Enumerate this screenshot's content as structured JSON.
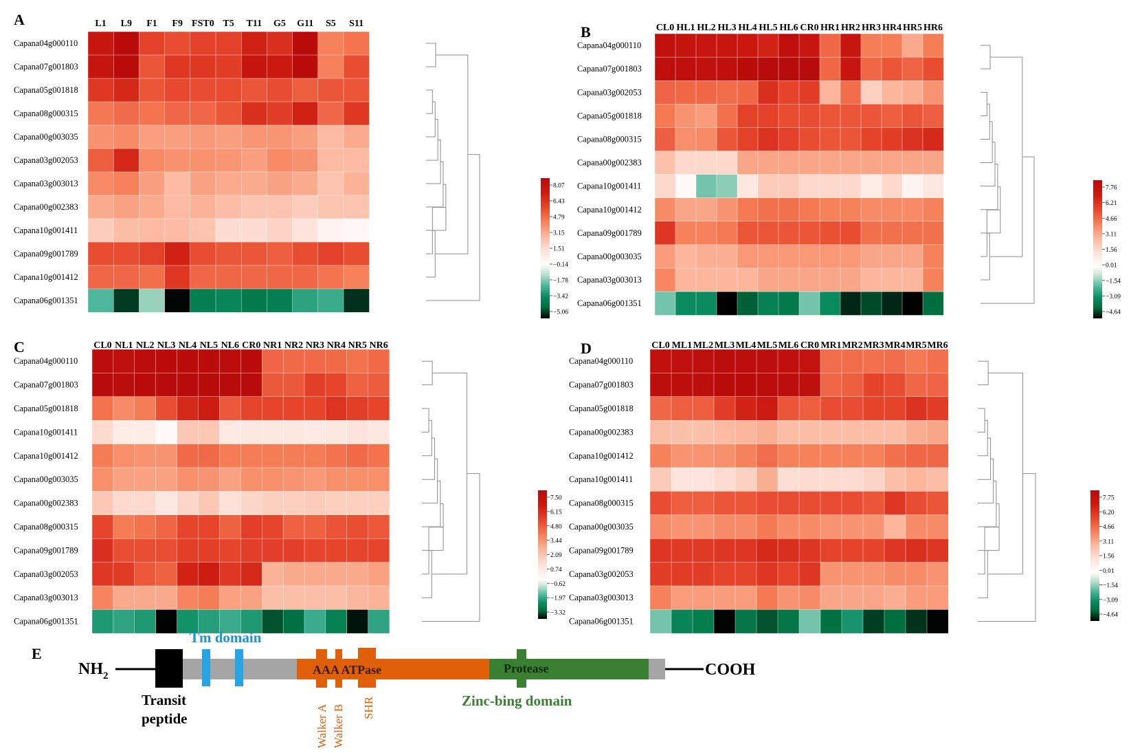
{
  "colors": {
    "pos": [
      "#fffdfd",
      "#fde2da",
      "#fbb79d",
      "#f67f58",
      "#e6452c",
      "#cc1a10",
      "#b80b0b"
    ],
    "neg": [
      "#ffffff",
      "#b7ddc9",
      "#4ab59a",
      "#0a8c60",
      "#006a3b",
      "#000000"
    ],
    "dendro": "#8c8c8c",
    "transit": "#000000",
    "tm": "#29a3e3",
    "gray": "#a5a5a5",
    "aaa": "#e0600a",
    "protease": "#3a8032",
    "zinc": "#3a8032",
    "tm_text": "#1f8fd8",
    "aaa_text": "#e0600a"
  },
  "chart_data": [
    {
      "type": "heatmap",
      "panel": "A",
      "columns": [
        "L1",
        "L9",
        "F1",
        "F9",
        "FST0",
        "T5",
        "T11",
        "G5",
        "G11",
        "S5",
        "S11"
      ],
      "rows": [
        "Capana04g000110",
        "Capana07g001803",
        "Capana05g001818",
        "Capana08g000315",
        "Capana00g003035",
        "Capana03g002053",
        "Capana03g003013",
        "Capana00g002383",
        "Capana10g001411",
        "Capana09g001789",
        "Capana10g001412",
        "Capana06g001351"
      ],
      "values": [
        [
          7.0,
          8.0,
          5.5,
          5.2,
          5.5,
          5.5,
          6.5,
          6.0,
          8.0,
          4.0,
          4.3
        ],
        [
          7.2,
          8.0,
          5.0,
          5.8,
          5.8,
          5.6,
          7.2,
          6.8,
          8.0,
          4.0,
          5.2
        ],
        [
          5.8,
          6.3,
          5.0,
          5.3,
          5.2,
          5.2,
          5.0,
          5.2,
          4.8,
          5.0,
          5.0
        ],
        [
          4.2,
          4.5,
          4.3,
          4.6,
          4.6,
          5.0,
          6.0,
          5.6,
          6.5,
          4.6,
          5.8
        ],
        [
          3.6,
          3.8,
          3.3,
          3.3,
          3.4,
          3.3,
          3.5,
          3.5,
          3.3,
          2.6,
          3.0
        ],
        [
          4.8,
          6.3,
          3.8,
          3.6,
          3.6,
          3.5,
          3.3,
          3.8,
          3.6,
          2.6,
          2.6
        ],
        [
          3.8,
          4.0,
          3.3,
          2.6,
          3.2,
          3.0,
          3.0,
          3.2,
          3.0,
          2.3,
          2.8
        ],
        [
          3.0,
          3.2,
          3.0,
          2.6,
          2.8,
          2.5,
          2.3,
          2.3,
          2.0,
          2.3,
          2.3
        ],
        [
          2.0,
          2.5,
          2.6,
          2.6,
          2.3,
          1.5,
          1.5,
          1.8,
          1.3,
          0.5,
          0.3
        ],
        [
          5.2,
          5.2,
          5.5,
          6.5,
          5.2,
          5.0,
          5.0,
          4.8,
          5.2,
          5.5,
          5.2
        ],
        [
          4.6,
          4.6,
          4.4,
          5.8,
          4.6,
          4.6,
          4.6,
          4.6,
          4.6,
          4.3,
          4.0
        ],
        [
          -2.0,
          -4.5,
          -1.3,
          -5.0,
          -3.4,
          -3.2,
          -3.6,
          -3.4,
          -2.5,
          -2.3,
          -4.6
        ]
      ],
      "colorbar_ticks": [
        "8.07",
        "6.43",
        "4.79",
        "3.15",
        "1.51",
        "−0.14",
        "−1.78",
        "−3.42",
        "−5.06"
      ]
    },
    {
      "type": "heatmap",
      "panel": "B",
      "columns": [
        "CL0",
        "HL1",
        "HL2",
        "HL3",
        "HL4",
        "HL5",
        "HL6",
        "CR0",
        "HR1",
        "HR2",
        "HR3",
        "HR4",
        "HR5",
        "HR6"
      ],
      "rows": [
        "Capana04g000110",
        "Capana07g001803",
        "Capana03g002053",
        "Capana05g001818",
        "Capana08g000315",
        "Capana00g002383",
        "Capana10g001411",
        "Capana10g001412",
        "Capana09g001789",
        "Capana00g003035",
        "Capana03g003013",
        "Capana06g001351"
      ],
      "values": [
        [
          7.2,
          7.0,
          6.8,
          6.8,
          6.6,
          6.2,
          7.4,
          6.8,
          4.4,
          6.8,
          3.9,
          3.9,
          2.9,
          3.9
        ],
        [
          7.4,
          7.4,
          7.2,
          7.3,
          7.7,
          7.8,
          7.8,
          7.8,
          4.4,
          6.8,
          4.4,
          4.8,
          4.5,
          5.0
        ],
        [
          4.5,
          4.4,
          4.4,
          4.3,
          4.4,
          5.8,
          5.2,
          5.4,
          2.6,
          4.3,
          1.8,
          2.6,
          2.8,
          3.4
        ],
        [
          4.0,
          3.4,
          3.2,
          4.2,
          5.3,
          5.3,
          5.0,
          5.0,
          4.8,
          4.8,
          4.8,
          4.6,
          4.8,
          4.6
        ],
        [
          4.6,
          3.5,
          3.6,
          4.8,
          5.3,
          5.7,
          5.3,
          5.0,
          4.8,
          4.8,
          5.2,
          5.4,
          5.7,
          6.0
        ],
        [
          2.3,
          1.6,
          1.6,
          1.6,
          3.0,
          3.0,
          3.0,
          3.0,
          3.0,
          3.0,
          3.0,
          3.0,
          3.0,
          3.0
        ],
        [
          1.6,
          0.2,
          -1.5,
          -1.3,
          1.0,
          2.0,
          2.0,
          1.6,
          1.6,
          1.6,
          0.8,
          1.6,
          0.4,
          1.0
        ],
        [
          3.6,
          3.0,
          3.0,
          3.4,
          4.0,
          4.2,
          4.2,
          4.0,
          3.8,
          3.8,
          3.6,
          3.6,
          3.6,
          3.8
        ],
        [
          5.6,
          3.8,
          3.8,
          4.0,
          4.8,
          4.8,
          4.8,
          4.8,
          4.9,
          5.0,
          4.2,
          4.2,
          4.2,
          4.2
        ],
        [
          3.2,
          2.6,
          2.8,
          2.8,
          3.3,
          3.3,
          3.3,
          3.3,
          3.3,
          3.3,
          3.0,
          3.0,
          3.0,
          3.8
        ],
        [
          3.7,
          2.6,
          2.6,
          2.6,
          2.6,
          3.0,
          3.0,
          3.0,
          3.0,
          3.0,
          2.6,
          2.6,
          2.6,
          3.8
        ],
        [
          -1.5,
          -2.8,
          -2.8,
          -4.7,
          -3.8,
          -3.1,
          -3.3,
          -1.5,
          -2.8,
          -4.3,
          -4.0,
          -4.3,
          -4.7,
          -3.6
        ]
      ],
      "colorbar_ticks": [
        "7.76",
        "6.21",
        "4.66",
        "3.11",
        "1.56",
        "0.01",
        "−1.54",
        "−3.09",
        "−4.64"
      ]
    },
    {
      "type": "heatmap",
      "panel": "C",
      "columns": [
        "CL0",
        "NL1",
        "NL2",
        "NL3",
        "NL4",
        "NL5",
        "NL6",
        "CR0",
        "NR1",
        "NR2",
        "NR3",
        "NR4",
        "NR5",
        "NR6"
      ],
      "rows": [
        "Capana04g000110",
        "Capana07g001803",
        "Capana05g001818",
        "Capana10g001411",
        "Capana10g001412",
        "Capana00g003035",
        "Capana00g002383",
        "Capana08g000315",
        "Capana09g001789",
        "Capana03g002053",
        "Capana03g003013",
        "Capana06g001351"
      ],
      "values": [
        [
          7.3,
          7.2,
          7.3,
          7.4,
          7.4,
          7.4,
          7.3,
          7.4,
          4.3,
          4.2,
          4.2,
          4.2,
          4.0,
          4.2
        ],
        [
          7.5,
          7.3,
          7.4,
          7.5,
          7.5,
          7.5,
          7.5,
          7.5,
          4.6,
          4.6,
          5.2,
          5.0,
          4.4,
          4.5
        ],
        [
          4.0,
          3.5,
          3.8,
          4.8,
          5.8,
          6.2,
          4.6,
          5.0,
          5.0,
          5.0,
          5.0,
          5.5,
          5.2,
          5.0
        ],
        [
          1.5,
          0.8,
          0.8,
          0.2,
          2.0,
          2.0,
          0.9,
          1.0,
          1.0,
          1.0,
          0.9,
          1.0,
          1.2,
          1.0
        ],
        [
          3.8,
          3.4,
          3.3,
          3.3,
          4.2,
          4.2,
          3.8,
          3.8,
          3.8,
          3.8,
          3.8,
          4.0,
          4.2,
          4.0
        ],
        [
          3.4,
          3.0,
          3.0,
          3.0,
          3.4,
          3.3,
          3.0,
          3.4,
          3.4,
          3.3,
          3.2,
          3.4,
          3.4,
          3.4
        ],
        [
          2.0,
          1.5,
          1.5,
          1.0,
          1.6,
          2.0,
          1.3,
          1.6,
          1.8,
          1.8,
          1.9,
          1.8,
          1.8,
          1.8
        ],
        [
          5.0,
          3.8,
          4.0,
          4.3,
          5.0,
          5.0,
          4.4,
          5.2,
          5.0,
          4.4,
          4.4,
          4.7,
          4.8,
          4.6
        ],
        [
          5.6,
          4.8,
          4.8,
          4.8,
          5.2,
          5.2,
          5.0,
          5.2,
          5.2,
          5.2,
          5.0,
          5.0,
          5.0,
          5.0
        ],
        [
          5.4,
          5.3,
          4.6,
          4.4,
          6.0,
          6.2,
          5.4,
          5.8,
          2.6,
          2.8,
          2.8,
          2.8,
          2.8,
          3.0
        ],
        [
          3.6,
          2.8,
          2.8,
          2.8,
          3.6,
          3.8,
          3.0,
          3.0,
          2.3,
          2.3,
          2.3,
          2.3,
          2.5,
          2.6
        ],
        [
          -1.8,
          -1.6,
          -1.8,
          -3.3,
          -1.9,
          -1.7,
          -1.5,
          -1.8,
          -2.8,
          -2.5,
          -1.5,
          -2.2,
          -3.2,
          -1.6
        ]
      ],
      "colorbar_ticks": [
        "7.50",
        "6.15",
        "4.80",
        "3.44",
        "2.09",
        "0.74",
        "−0.62",
        "−1.97",
        "−3.32"
      ]
    },
    {
      "type": "heatmap",
      "panel": "D",
      "columns": [
        "CL0",
        "ML1",
        "ML2",
        "ML3",
        "ML4",
        "ML5",
        "ML6",
        "CR0",
        "MR1",
        "MR2",
        "MR3",
        "MR4",
        "MR5",
        "MR6"
      ],
      "rows": [
        "Capana04g000110",
        "Capana07g001803",
        "Capana05g001818",
        "Capana00g002383",
        "Capana10g001412",
        "Capana10g001411",
        "Capana08g000315",
        "Capana00g003035",
        "Capana09g001789",
        "Capana03g002053",
        "Capana03g003013",
        "Capana06g001351"
      ],
      "values": [
        [
          7.2,
          7.3,
          7.4,
          7.6,
          7.5,
          7.5,
          7.3,
          7.1,
          4.3,
          4.3,
          4.2,
          4.3,
          4.0,
          4.2
        ],
        [
          7.5,
          7.5,
          7.5,
          7.7,
          7.7,
          7.6,
          7.5,
          7.4,
          4.4,
          4.6,
          5.2,
          5.0,
          4.4,
          4.5
        ],
        [
          4.4,
          4.6,
          4.6,
          5.4,
          6.2,
          6.5,
          4.8,
          4.6,
          5.0,
          5.0,
          5.2,
          5.2,
          5.7,
          5.4
        ],
        [
          2.4,
          2.3,
          2.3,
          2.5,
          2.6,
          2.8,
          2.4,
          2.4,
          2.4,
          2.4,
          2.4,
          2.4,
          2.8,
          3.0
        ],
        [
          3.8,
          3.4,
          3.4,
          3.5,
          3.8,
          4.3,
          3.8,
          3.8,
          3.8,
          3.8,
          3.8,
          4.2,
          4.4,
          4.4
        ],
        [
          2.0,
          1.2,
          1.2,
          1.5,
          1.8,
          2.8,
          1.4,
          1.5,
          1.5,
          1.5,
          1.7,
          2.3,
          2.6,
          2.4
        ],
        [
          5.0,
          4.6,
          4.6,
          4.8,
          4.8,
          5.0,
          5.0,
          5.0,
          5.0,
          5.0,
          4.8,
          5.6,
          5.0,
          4.8
        ],
        [
          3.6,
          3.4,
          3.4,
          3.6,
          3.6,
          4.0,
          3.6,
          3.6,
          3.4,
          3.4,
          3.4,
          2.6,
          3.6,
          3.6
        ],
        [
          5.6,
          5.5,
          5.5,
          5.6,
          5.6,
          6.0,
          5.8,
          5.6,
          5.2,
          5.2,
          5.2,
          5.6,
          5.8,
          5.6
        ],
        [
          5.4,
          5.4,
          5.4,
          5.2,
          5.2,
          5.6,
          5.2,
          5.6,
          3.4,
          3.4,
          3.4,
          3.6,
          3.6,
          3.4
        ],
        [
          3.8,
          3.2,
          3.2,
          3.2,
          3.2,
          4.0,
          3.4,
          3.6,
          3.0,
          3.0,
          3.0,
          2.8,
          3.2,
          3.2
        ],
        [
          -1.5,
          -3.0,
          -3.2,
          -4.6,
          -3.4,
          -3.9,
          -3.4,
          -1.5,
          -3.5,
          -2.6,
          -4.1,
          -3.6,
          -4.2,
          -4.6
        ]
      ],
      "colorbar_ticks": [
        "7.75",
        "6.20",
        "4.66",
        "3.11",
        "1.56",
        "0.01",
        "−1.54",
        "−3.09",
        "−4.64"
      ]
    }
  ],
  "schematic": {
    "panel": "E",
    "nh2": "NH",
    "nh2_sub": "2",
    "cooh": "COOH",
    "tm_domain": "Tm domain",
    "transit_line1": "Transit",
    "transit_line2": "peptide",
    "aaa_atpase": "AAA ATPase",
    "protease": "Protease",
    "zinc": "Zinc-bing domain",
    "walker_a": "Walker A",
    "walker_b": "Walker B",
    "shr": "SHR"
  }
}
